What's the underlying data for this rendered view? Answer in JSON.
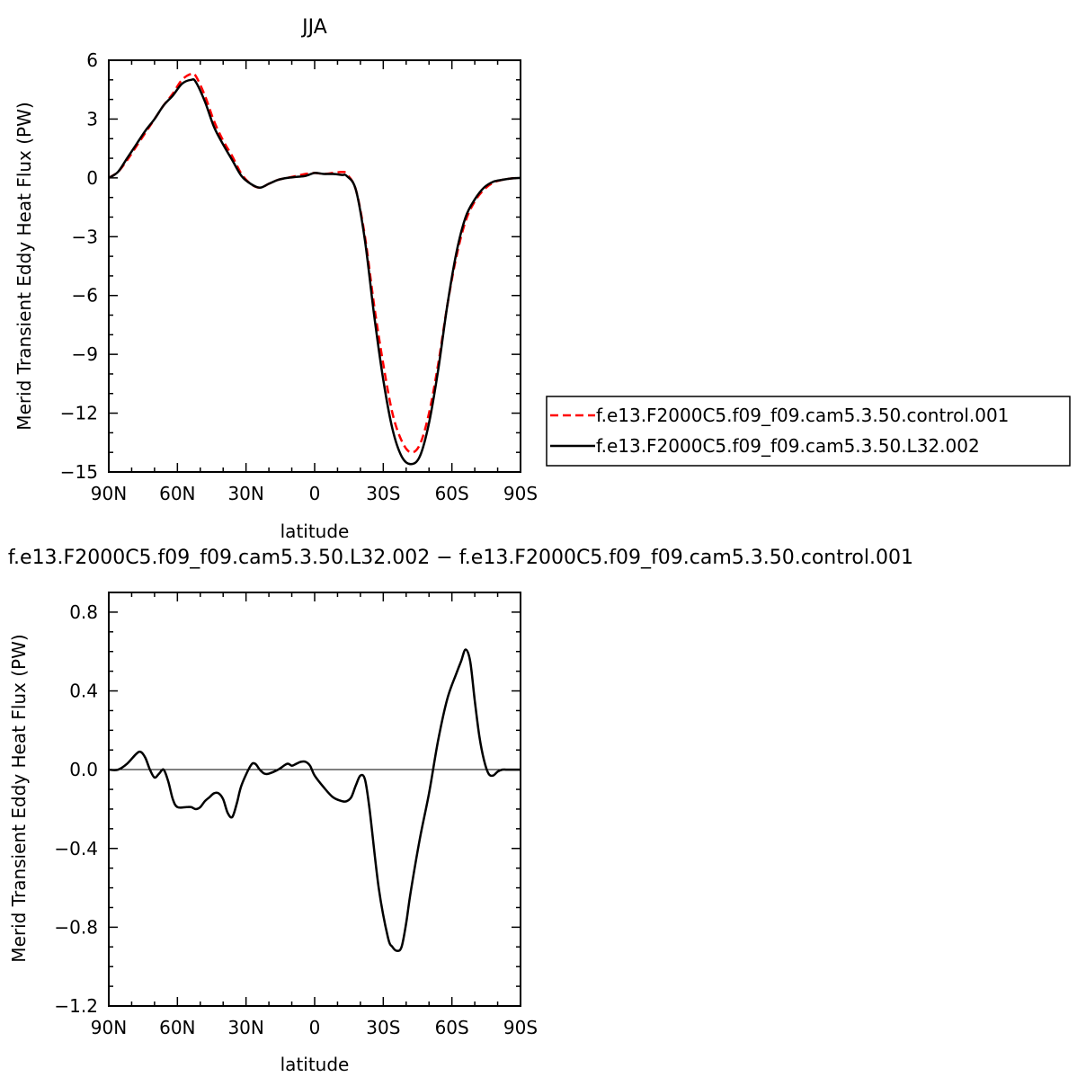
{
  "chart_data": [
    {
      "type": "line",
      "title": "JJA",
      "xlabel": "latitude",
      "ylabel": "Merid Transient Eddy Heat Flux (PW)",
      "xlim": [
        90,
        -90
      ],
      "ylim": [
        -15,
        6
      ],
      "x_ticks": [
        90,
        60,
        30,
        0,
        -30,
        -60,
        -90
      ],
      "x_tick_labels": [
        "90N",
        "60N",
        "30N",
        "0",
        "30S",
        "60S",
        "90S"
      ],
      "y_ticks": [
        6,
        3,
        0,
        -3,
        -6,
        -9,
        -12,
        -15
      ],
      "y_tick_labels": [
        "6",
        "3",
        "0",
        "−3",
        "−6",
        "−9",
        "−12",
        "−15"
      ],
      "legend_position": "right",
      "series": [
        {
          "name": "f.e13.F2000C5.f09_f09.cam5.3.50.control.001",
          "color": "#ff0000",
          "dash": "dashed",
          "x": [
            90,
            86,
            82,
            78,
            74,
            70,
            66,
            62,
            58,
            54,
            52,
            48,
            44,
            40,
            36,
            32,
            28,
            24,
            20,
            16,
            12,
            8,
            4,
            0,
            -4,
            -8,
            -12,
            -14,
            -18,
            -22,
            -26,
            -30,
            -34,
            -38,
            -42,
            -46,
            -50,
            -54,
            -58,
            -62,
            -66,
            -70,
            -74,
            -78,
            -82,
            -86,
            -90
          ],
          "y": [
            0.0,
            0.3,
            0.9,
            1.6,
            2.3,
            3.0,
            3.7,
            4.3,
            5.0,
            5.3,
            5.2,
            4.2,
            2.9,
            1.9,
            1.1,
            0.2,
            -0.3,
            -0.5,
            -0.3,
            -0.1,
            0.0,
            0.1,
            0.2,
            0.25,
            0.2,
            0.25,
            0.3,
            0.2,
            -0.6,
            -3.0,
            -6.5,
            -9.5,
            -12.0,
            -13.4,
            -14.0,
            -13.6,
            -12.0,
            -9.5,
            -6.5,
            -4.0,
            -2.2,
            -1.2,
            -0.6,
            -0.25,
            -0.1,
            -0.03,
            0.0
          ]
        },
        {
          "name": "f.e13.F2000C5.f09_f09.cam5.3.50.L32.002",
          "color": "#000000",
          "dash": "solid",
          "x": [
            90,
            86,
            82,
            78,
            74,
            70,
            66,
            62,
            58,
            54,
            52,
            48,
            44,
            40,
            36,
            32,
            28,
            24,
            20,
            16,
            12,
            8,
            4,
            0,
            -4,
            -8,
            -12,
            -14,
            -18,
            -22,
            -26,
            -30,
            -34,
            -38,
            -42,
            -46,
            -50,
            -54,
            -58,
            -62,
            -66,
            -70,
            -74,
            -78,
            -82,
            -86,
            -90
          ],
          "y": [
            0.0,
            0.3,
            1.0,
            1.7,
            2.4,
            3.0,
            3.7,
            4.2,
            4.8,
            5.0,
            4.9,
            3.9,
            2.6,
            1.7,
            0.9,
            0.1,
            -0.3,
            -0.5,
            -0.3,
            -0.1,
            0.0,
            0.05,
            0.1,
            0.25,
            0.2,
            0.2,
            0.15,
            0.1,
            -0.6,
            -3.2,
            -7.0,
            -10.3,
            -12.8,
            -14.2,
            -14.6,
            -14.2,
            -12.5,
            -9.8,
            -6.5,
            -3.8,
            -2.0,
            -1.1,
            -0.5,
            -0.2,
            -0.1,
            -0.03,
            0.0
          ]
        }
      ]
    },
    {
      "type": "line",
      "title": "f.e13.F2000C5.f09_f09.cam5.3.50.L32.002 − f.e13.F2000C5.f09_f09.cam5.3.50.control.001",
      "xlabel": "latitude",
      "ylabel": "Merid Transient Eddy Heat Flux (PW)",
      "xlim": [
        90,
        -90
      ],
      "ylim": [
        -1.2,
        0.9
      ],
      "x_ticks": [
        90,
        60,
        30,
        0,
        -30,
        -60,
        -90
      ],
      "x_tick_labels": [
        "90N",
        "60N",
        "30N",
        "0",
        "30S",
        "60S",
        "90S"
      ],
      "y_ticks": [
        0.8,
        0.4,
        0.0,
        -0.4,
        -0.8,
        -1.2
      ],
      "y_tick_labels": [
        "0.8",
        "0.4",
        "0.0",
        "−0.4",
        "−0.8",
        "−1.2"
      ],
      "series": [
        {
          "color": "#000000",
          "dash": "solid",
          "x": [
            90,
            86,
            82,
            78,
            76,
            74,
            72,
            70,
            68,
            66,
            64,
            62,
            60,
            56,
            54,
            52,
            50,
            48,
            46,
            44,
            42,
            40,
            38,
            36,
            34,
            32,
            28,
            26,
            24,
            22,
            20,
            16,
            12,
            10,
            8,
            6,
            4,
            2,
            0,
            -4,
            -8,
            -12,
            -14,
            -16,
            -18,
            -20,
            -22,
            -24,
            -28,
            -32,
            -34,
            -36,
            -38,
            -40,
            -42,
            -46,
            -50,
            -54,
            -58,
            -62,
            -64,
            -66,
            -68,
            -70,
            -72,
            -74,
            -76,
            -78,
            -80,
            -82,
            -84,
            -88,
            -90
          ],
          "y": [
            0.0,
            0.0,
            0.03,
            0.08,
            0.09,
            0.06,
            0.0,
            -0.04,
            -0.02,
            0.0,
            -0.06,
            -0.15,
            -0.19,
            -0.19,
            -0.19,
            -0.2,
            -0.19,
            -0.16,
            -0.14,
            -0.12,
            -0.12,
            -0.15,
            -0.22,
            -0.24,
            -0.17,
            -0.08,
            0.02,
            0.03,
            0.0,
            -0.02,
            -0.02,
            0.0,
            0.03,
            0.02,
            0.03,
            0.04,
            0.04,
            0.02,
            -0.03,
            -0.09,
            -0.14,
            -0.16,
            -0.16,
            -0.14,
            -0.08,
            -0.03,
            -0.05,
            -0.2,
            -0.6,
            -0.85,
            -0.9,
            -0.92,
            -0.9,
            -0.78,
            -0.62,
            -0.35,
            -0.12,
            0.15,
            0.36,
            0.49,
            0.55,
            0.61,
            0.55,
            0.35,
            0.17,
            0.05,
            -0.02,
            -0.03,
            -0.01,
            0.0,
            0.0,
            0.0,
            0.0
          ]
        }
      ]
    }
  ]
}
